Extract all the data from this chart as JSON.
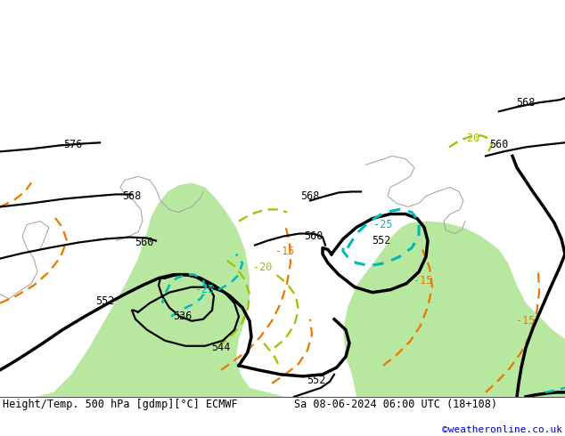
{
  "title_left": "Height/Temp. 500 hPa [gdmp][°C] ECMWF",
  "title_right": "Sa 08-06-2024 06:00 UTC (18+108)",
  "credit": "©weatheronline.co.uk",
  "bg_gray": "#c8c8c8",
  "land_green": "#b8e8a0",
  "land_gray": "#b8b8b8",
  "coast_color": "#a0a0a0",
  "black": "#000000",
  "cyan": "#00b8b8",
  "orange": "#e87800",
  "ygreen": "#a0c000",
  "title_fontsize": 8.5,
  "credit_fontsize": 8,
  "credit_color": "#0000cc",
  "label_fs": 8.5,
  "figsize": [
    6.34,
    4.9
  ],
  "dpi": 100
}
